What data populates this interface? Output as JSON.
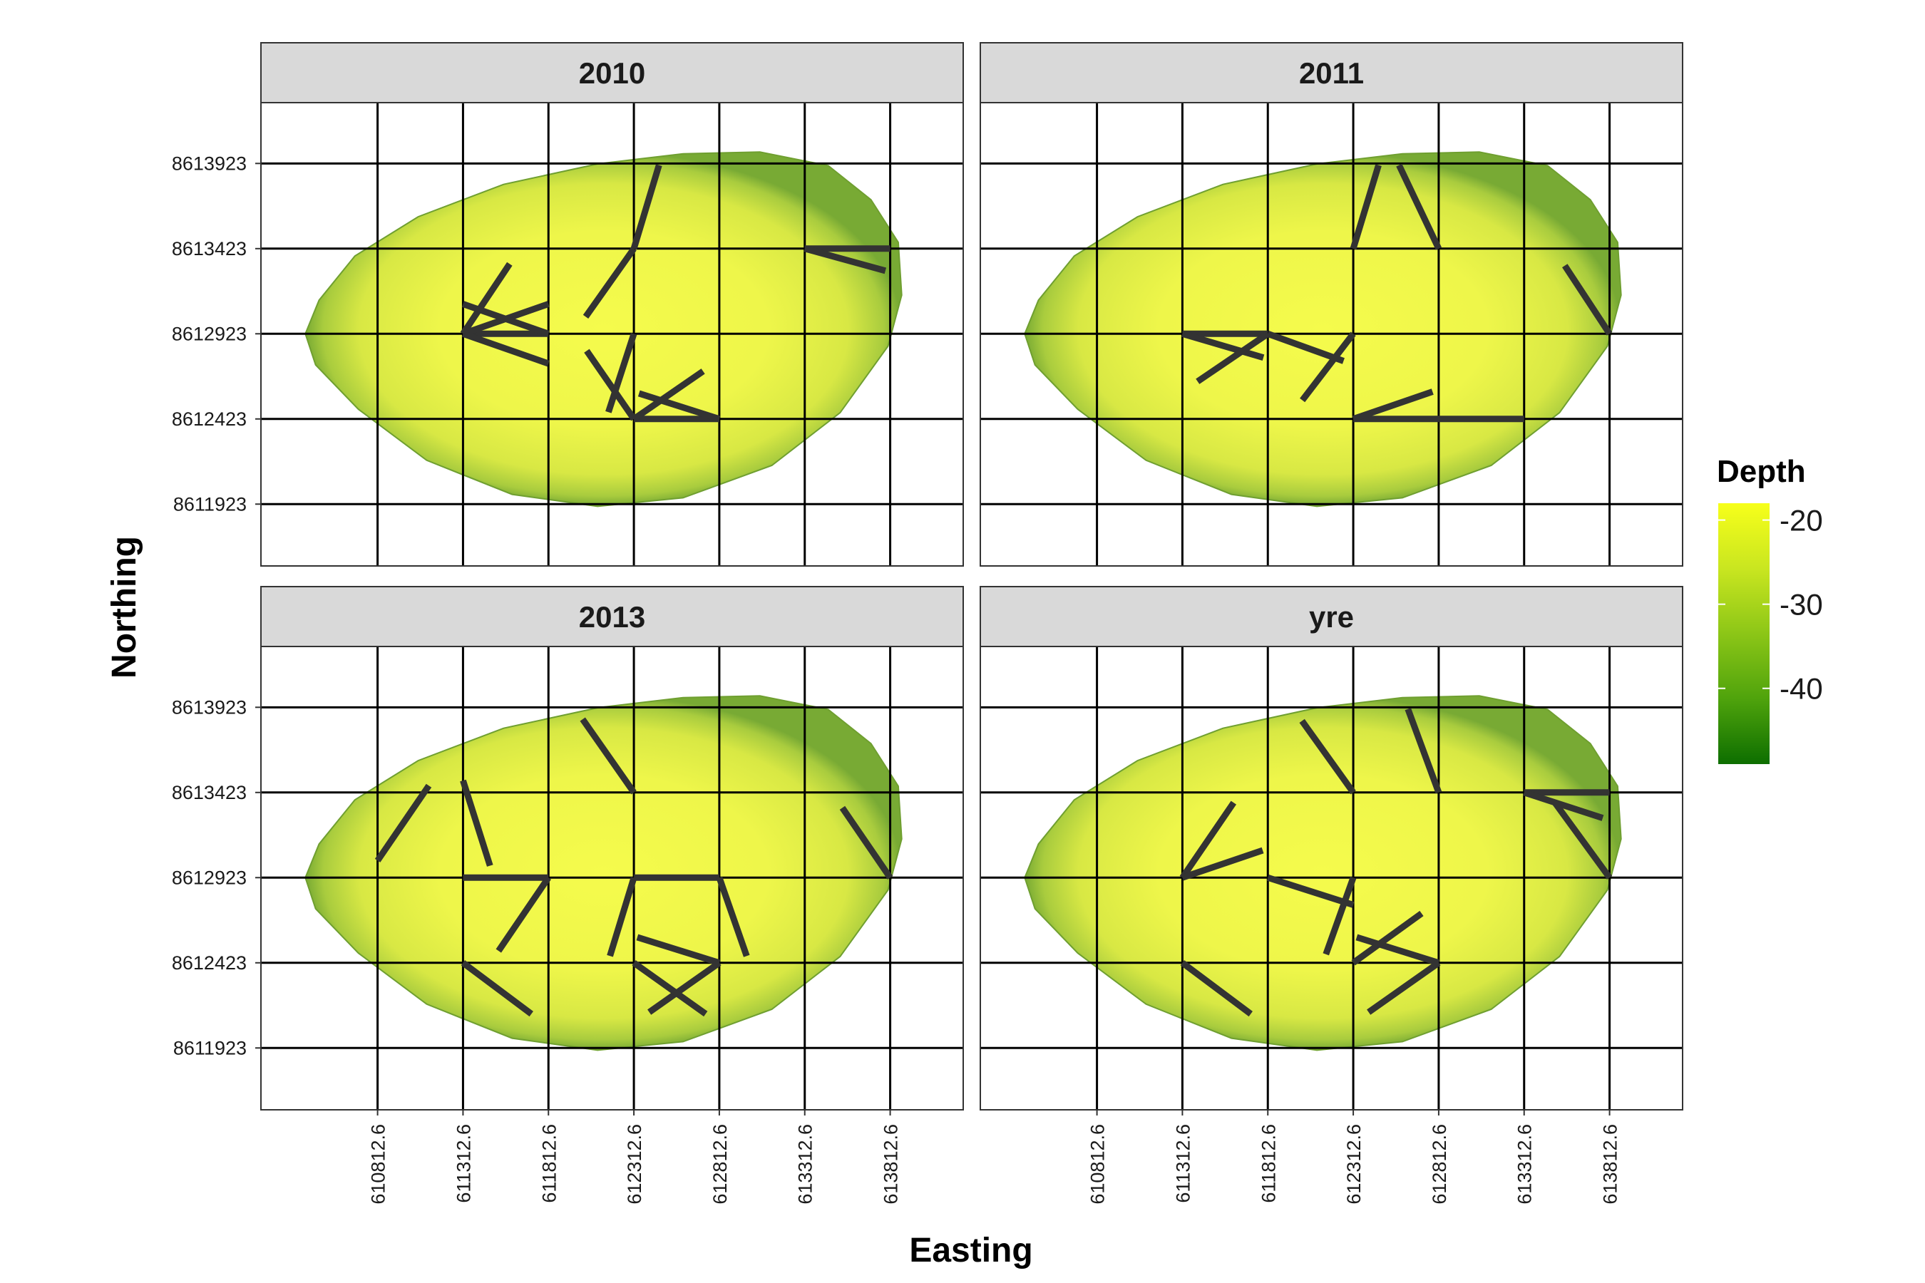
{
  "chart_data": {
    "type": "faceted-map",
    "xlabel": "Easting",
    "ylabel": "Northing",
    "x_ticks": [
      610812.6,
      611312.6,
      611812.6,
      612312.6,
      612812.6,
      613312.6,
      613812.6
    ],
    "x_tick_labels": [
      "610812.6",
      "611312.6",
      "611812.6",
      "612312.6",
      "612812.6",
      "613312.6",
      "613812.6"
    ],
    "y_ticks": [
      8611923,
      8612423,
      8612923,
      8613423,
      8613923
    ],
    "y_tick_labels": [
      "8611923",
      "8612423",
      "8612923",
      "8613423",
      "8613923"
    ],
    "xlim": [
      610130,
      614240
    ],
    "ylim": [
      8611560,
      8614280
    ],
    "grid": true,
    "legend": {
      "title": "Depth",
      "type": "colorbar",
      "placement": "right",
      "range": [
        -49,
        -18
      ],
      "ticks": [
        -20,
        -30,
        -40
      ],
      "tick_labels": [
        "-20",
        "-30",
        "-40"
      ],
      "colors": [
        "#f7ff1a",
        "#c9e620",
        "#8cc617",
        "#4fa30c",
        "#0d6e00"
      ]
    },
    "lake_outline": [
      [
        610390,
        8612923
      ],
      [
        610470,
        8613120
      ],
      [
        610680,
        8613380
      ],
      [
        611050,
        8613610
      ],
      [
        611550,
        8613800
      ],
      [
        612100,
        8613920
      ],
      [
        612600,
        8613980
      ],
      [
        613050,
        8613990
      ],
      [
        613450,
        8613910
      ],
      [
        613700,
        8613710
      ],
      [
        613860,
        8613460
      ],
      [
        613880,
        8613150
      ],
      [
        613800,
        8612850
      ],
      [
        613520,
        8612460
      ],
      [
        613120,
        8612150
      ],
      [
        612600,
        8611960
      ],
      [
        612100,
        8611910
      ],
      [
        611600,
        8611980
      ],
      [
        611100,
        8612180
      ],
      [
        610700,
        8612480
      ],
      [
        610450,
        8612740
      ]
    ],
    "facets": [
      {
        "label": "2010",
        "segments": [
          [
            [
              611812.6,
              8612923
            ],
            [
              611312.6,
              8612923
            ]
          ],
          [
            [
              611312.6,
              8612923
            ],
            [
              611812.6,
              8613098
            ]
          ],
          [
            [
              611312.6,
              8612923
            ],
            [
              611812.6,
              8612748
            ]
          ],
          [
            [
              611312.6,
              8612923
            ],
            [
              611585.6,
              8613333
            ]
          ],
          [
            [
              611312.6,
              8613098
            ],
            [
              611812.6,
              8612923
            ]
          ],
          [
            [
              612312.6,
              8613423
            ],
            [
              612459.6,
              8613913
            ]
          ],
          [
            [
              612312.6,
              8613423
            ],
            [
              612030.6,
              8613023
            ]
          ],
          [
            [
              612812.6,
              8612423
            ],
            [
              612312.6,
              8612423
            ]
          ],
          [
            [
              612312.6,
              8612423
            ],
            [
              612036.6,
              8612823
            ]
          ],
          [
            [
              612312.6,
              8612423
            ],
            [
              612717.6,
              8612703
            ]
          ],
          [
            [
              612312.6,
              8612923
            ],
            [
              612163.6,
              8612463
            ]
          ],
          [
            [
              612812.6,
              8612423
            ],
            [
              612342.6,
              8612573
            ]
          ],
          [
            [
              613812.6,
              8613423
            ],
            [
              613312.6,
              8613423
            ]
          ],
          [
            [
              613312.6,
              8613423
            ],
            [
              613784.6,
              8613293
            ]
          ]
        ]
      },
      {
        "label": "2011",
        "segments": [
          [
            [
              611312.6,
              8612923
            ],
            [
              611812.6,
              8612923
            ]
          ],
          [
            [
              611312.6,
              8612923
            ],
            [
              611786.6,
              8612783
            ]
          ],
          [
            [
              611812.6,
              8612923
            ],
            [
              611401.6,
              8612643
            ]
          ],
          [
            [
              611812.6,
              8612923
            ],
            [
              612255.6,
              8612763
            ]
          ],
          [
            [
              612312.6,
              8612923
            ],
            [
              612014.6,
              8612533
            ]
          ],
          [
            [
              612312.6,
              8612423
            ],
            [
              613312.6,
              8612423
            ]
          ],
          [
            [
              612312.6,
              8612423
            ],
            [
              612776.6,
              8612583
            ]
          ],
          [
            [
              612312.6,
              8613423
            ],
            [
              612460.6,
              8613913
            ]
          ],
          [
            [
              612812.6,
              8613423
            ],
            [
              612580.6,
              8613913
            ]
          ],
          [
            [
              613812.6,
              8612923
            ],
            [
              613550.6,
              8613323
            ]
          ]
        ]
      },
      {
        "label": "2013",
        "segments": [
          [
            [
              610812.6,
              8613023
            ],
            [
              611112.6,
              8613463
            ]
          ],
          [
            [
              611312.6,
              8613493
            ],
            [
              611470.6,
              8612993
            ]
          ],
          [
            [
              611312.6,
              8612923
            ],
            [
              611812.6,
              8612923
            ]
          ],
          [
            [
              611812.6,
              8612923
            ],
            [
              611520.6,
              8612493
            ]
          ],
          [
            [
              611312.6,
              8612423
            ],
            [
              611712.6,
              8612123
            ]
          ],
          [
            [
              612312.6,
              8613423
            ],
            [
              612012.6,
              8613853
            ]
          ],
          [
            [
              612312.6,
              8612923
            ],
            [
              612812.6,
              8612923
            ]
          ],
          [
            [
              612312.6,
              8612923
            ],
            [
              612172.6,
              8612463
            ]
          ],
          [
            [
              612812.6,
              8612923
            ],
            [
              612972.6,
              8612463
            ]
          ],
          [
            [
              612812.6,
              8612423
            ],
            [
              612332.6,
              8612573
            ]
          ],
          [
            [
              612812.6,
              8612423
            ],
            [
              612402.6,
              8612133
            ]
          ],
          [
            [
              612312.6,
              8612423
            ],
            [
              612732.6,
              8612123
            ]
          ],
          [
            [
              613812.6,
              8612923
            ],
            [
              613532.6,
              8613333
            ]
          ]
        ]
      },
      {
        "label": "yre",
        "segments": [
          [
            [
              611312.6,
              8612923
            ],
            [
              611612.6,
              8613363
            ]
          ],
          [
            [
              611312.6,
              8612923
            ],
            [
              611782.6,
              8613083
            ]
          ],
          [
            [
              611812.6,
              8612923
            ],
            [
              612312.6,
              8612763
            ]
          ],
          [
            [
              612312.6,
              8612923
            ],
            [
              612152.6,
              8612473
            ]
          ],
          [
            [
              612812.6,
              8612423
            ],
            [
              612332.6,
              8612573
            ]
          ],
          [
            [
              612812.6,
              8612423
            ],
            [
              612402.6,
              8612133
            ]
          ],
          [
            [
              612312.6,
              8612423
            ],
            [
              612712.6,
              8612713
            ]
          ],
          [
            [
              611312.6,
              8612423
            ],
            [
              611712.6,
              8612123
            ]
          ],
          [
            [
              612312.6,
              8613423
            ],
            [
              612012.6,
              8613843
            ]
          ],
          [
            [
              612812.6,
              8613423
            ],
            [
              612632.6,
              8613913
            ]
          ],
          [
            [
              613312.6,
              8613423
            ],
            [
              613812.6,
              8613423
            ]
          ],
          [
            [
              613312.6,
              8613423
            ],
            [
              613772.6,
              8613273
            ]
          ],
          [
            [
              613812.6,
              8612923
            ],
            [
              613492.6,
              8613363
            ]
          ]
        ]
      }
    ]
  }
}
